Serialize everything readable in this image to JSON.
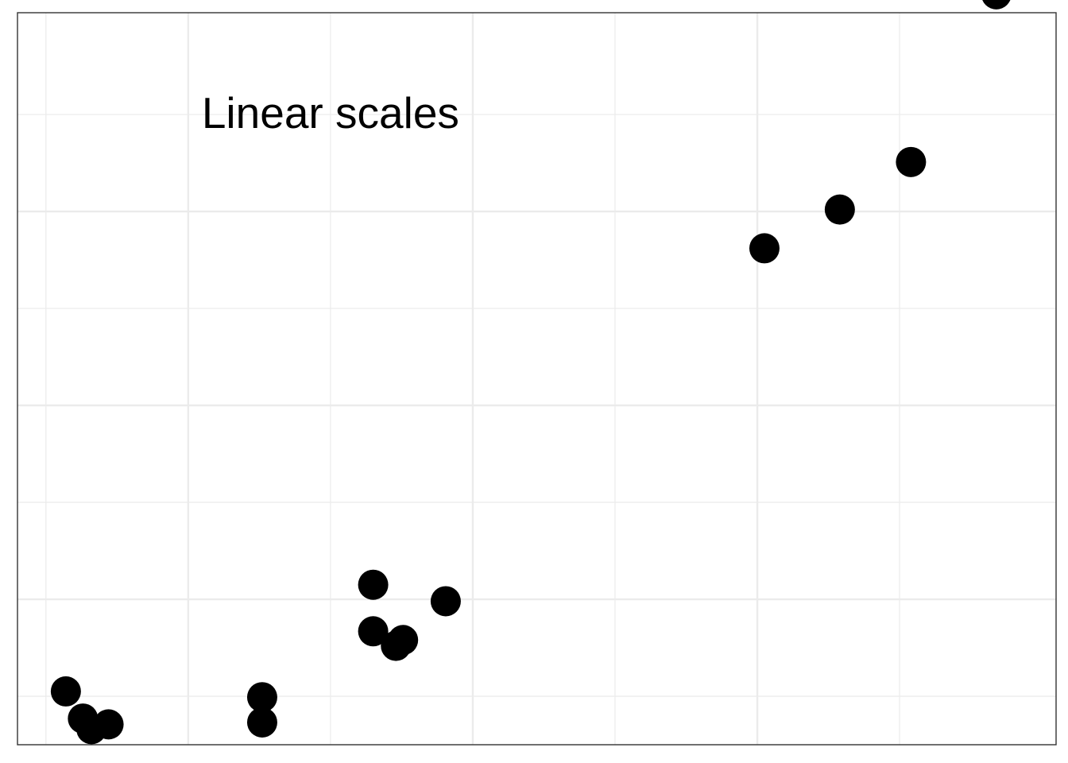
{
  "chart_data": {
    "type": "scatter",
    "title": "",
    "xlabel": "",
    "ylabel": "",
    "xlim": [
      -0.2,
      7.1
    ],
    "ylim": [
      -0.5,
      7.05
    ],
    "x_major_ticks": [
      1,
      3,
      5
    ],
    "x_minor_ticks": [
      0,
      2,
      4,
      6
    ],
    "y_major_ticks": [
      1,
      3,
      5
    ],
    "y_minor_ticks": [
      0,
      2,
      4,
      6
    ],
    "grid": true,
    "legend": "none",
    "annotations": [
      {
        "text": "Linear scales",
        "x": 2.0,
        "y": 5.98
      }
    ],
    "series": [
      {
        "color": "#000000",
        "points": [
          {
            "x": 0.14,
            "y": 0.05
          },
          {
            "x": 0.32,
            "y": -0.34
          },
          {
            "x": 0.26,
            "y": -0.23
          },
          {
            "x": 0.44,
            "y": -0.29
          },
          {
            "x": 1.52,
            "y": -0.01
          },
          {
            "x": 1.52,
            "y": -0.27
          },
          {
            "x": 2.3,
            "y": 1.15
          },
          {
            "x": 2.3,
            "y": 0.67
          },
          {
            "x": 2.46,
            "y": 0.52
          },
          {
            "x": 2.51,
            "y": 0.58
          },
          {
            "x": 2.81,
            "y": 0.98
          },
          {
            "x": 5.05,
            "y": 4.62
          },
          {
            "x": 5.58,
            "y": 5.02
          },
          {
            "x": 6.08,
            "y": 5.51
          },
          {
            "x": 6.68,
            "y": 7.24
          }
        ]
      }
    ]
  }
}
